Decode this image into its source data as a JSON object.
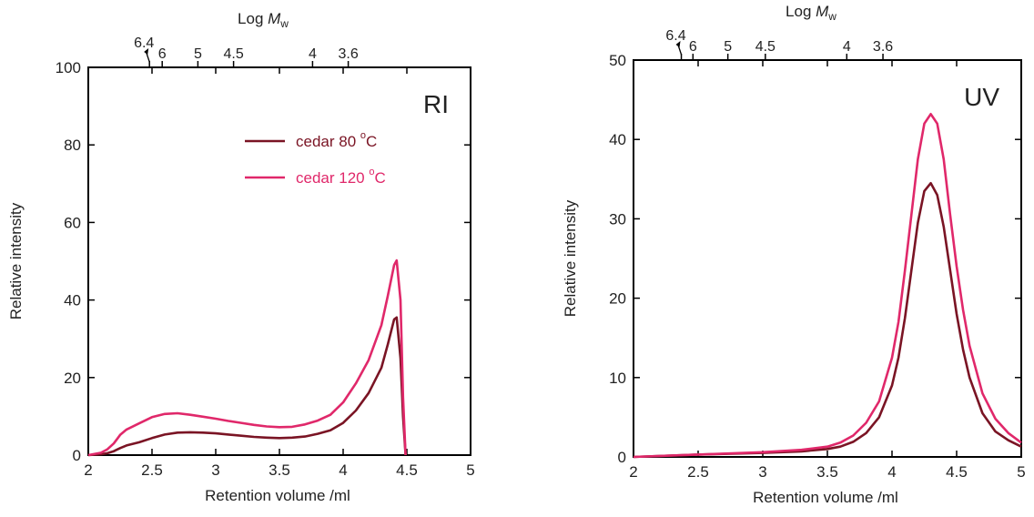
{
  "figure": {
    "colors": {
      "cedar_80": "#7a1424",
      "cedar_120": "#e0286a",
      "axis": "#000000"
    }
  },
  "chart_data": [
    {
      "type": "line",
      "panel_label": "RI",
      "xlabel": "Retention volume /ml",
      "ylabel": "Relative intensity",
      "top_axis_label": "Log ",
      "top_axis_label_var": "M",
      "top_axis_label_sub": "w",
      "xlim": [
        2,
        5
      ],
      "ylim": [
        0,
        100
      ],
      "xticks": [
        "2",
        "2.5",
        "3",
        "3.5",
        "4",
        "4.5",
        "5"
      ],
      "yticks": [
        "0",
        "20",
        "40",
        "60",
        "80",
        "100"
      ],
      "top_ticks": [
        {
          "label": "6.4",
          "x": 2.48
        },
        {
          "label": "6",
          "x": 2.58
        },
        {
          "label": "5",
          "x": 2.86
        },
        {
          "label": "4.5",
          "x": 3.14
        },
        {
          "label": "4",
          "x": 3.76
        },
        {
          "label": "3.6",
          "x": 4.04
        }
      ],
      "legend": [
        {
          "label": "cedar 80 ",
          "sup": "o",
          "unit": "C",
          "color": "#7a1424"
        },
        {
          "label": "cedar 120 ",
          "sup": "o",
          "unit": "C",
          "color": "#e0286a"
        }
      ],
      "series": [
        {
          "name": "cedar 80 °C",
          "color": "#7a1424",
          "x": [
            2.0,
            2.1,
            2.15,
            2.2,
            2.25,
            2.3,
            2.4,
            2.5,
            2.6,
            2.7,
            2.8,
            2.9,
            3.0,
            3.1,
            3.2,
            3.3,
            3.4,
            3.5,
            3.6,
            3.7,
            3.8,
            3.9,
            4.0,
            4.1,
            4.2,
            4.3,
            4.35,
            4.4,
            4.42,
            4.45,
            4.47,
            4.49
          ],
          "y": [
            0,
            0.2,
            0.5,
            1.0,
            1.8,
            2.5,
            3.3,
            4.4,
            5.3,
            5.8,
            5.9,
            5.8,
            5.6,
            5.3,
            5.0,
            4.7,
            4.5,
            4.4,
            4.5,
            4.8,
            5.5,
            6.4,
            8.3,
            11.5,
            16.0,
            22.5,
            28.5,
            35.0,
            35.5,
            25.0,
            10.0,
            0
          ]
        },
        {
          "name": "cedar 120 °C",
          "color": "#e0286a",
          "x": [
            2.0,
            2.1,
            2.15,
            2.2,
            2.25,
            2.3,
            2.4,
            2.5,
            2.6,
            2.7,
            2.8,
            2.9,
            3.0,
            3.1,
            3.2,
            3.3,
            3.4,
            3.5,
            3.6,
            3.7,
            3.8,
            3.9,
            4.0,
            4.1,
            4.2,
            4.3,
            4.35,
            4.4,
            4.42,
            4.45,
            4.47,
            4.49
          ],
          "y": [
            0,
            0.6,
            1.5,
            3.0,
            5.2,
            6.6,
            8.2,
            9.8,
            10.6,
            10.8,
            10.4,
            9.9,
            9.4,
            8.8,
            8.3,
            7.8,
            7.4,
            7.2,
            7.3,
            7.9,
            8.9,
            10.4,
            13.6,
            18.5,
            24.5,
            33.5,
            41.0,
            49.0,
            50.2,
            40.0,
            15.0,
            0
          ]
        }
      ]
    },
    {
      "type": "line",
      "panel_label": "UV",
      "xlabel": "Retention volume /ml",
      "ylabel": "Relative intensity",
      "top_axis_label": "Log ",
      "top_axis_label_var": "M",
      "top_axis_label_sub": "w",
      "xlim": [
        2,
        5
      ],
      "ylim": [
        0,
        50
      ],
      "xticks": [
        "2",
        "2.5",
        "3",
        "3.5",
        "4",
        "4.5",
        "5"
      ],
      "yticks": [
        "0",
        "10",
        "20",
        "30",
        "40",
        "50"
      ],
      "top_ticks": [
        {
          "label": "6.4",
          "x": 2.37
        },
        {
          "label": "6",
          "x": 2.46
        },
        {
          "label": "5",
          "x": 2.73
        },
        {
          "label": "4.5",
          "x": 3.02
        },
        {
          "label": "4",
          "x": 3.65
        },
        {
          "label": "3.6",
          "x": 3.93
        }
      ],
      "legend": [],
      "series": [
        {
          "name": "cedar 80 °C",
          "color": "#7a1424",
          "x": [
            2.0,
            2.5,
            3.0,
            3.3,
            3.5,
            3.6,
            3.7,
            3.8,
            3.9,
            4.0,
            4.05,
            4.1,
            4.15,
            4.2,
            4.25,
            4.3,
            4.35,
            4.4,
            4.45,
            4.5,
            4.55,
            4.6,
            4.7,
            4.8,
            4.9,
            5.0
          ],
          "y": [
            0,
            0.3,
            0.5,
            0.7,
            1.0,
            1.3,
            1.9,
            3.0,
            5.0,
            9.0,
            12.5,
            17.5,
            23.5,
            29.5,
            33.5,
            34.5,
            33.0,
            29.0,
            23.5,
            18.0,
            13.5,
            10.0,
            5.5,
            3.2,
            2.1,
            1.3
          ]
        },
        {
          "name": "cedar 120 °C",
          "color": "#e0286a",
          "x": [
            2.0,
            2.5,
            3.0,
            3.3,
            3.5,
            3.6,
            3.7,
            3.8,
            3.9,
            4.0,
            4.05,
            4.1,
            4.15,
            4.2,
            4.25,
            4.3,
            4.35,
            4.4,
            4.45,
            4.5,
            4.55,
            4.6,
            4.7,
            4.8,
            4.9,
            5.0
          ],
          "y": [
            0,
            0.3,
            0.6,
            0.9,
            1.3,
            1.8,
            2.7,
            4.3,
            7.0,
            12.5,
            17.0,
            23.5,
            30.5,
            37.5,
            42.0,
            43.2,
            42.0,
            37.5,
            30.5,
            24.0,
            18.5,
            14.0,
            8.0,
            4.8,
            3.0,
            1.8
          ]
        }
      ]
    }
  ]
}
